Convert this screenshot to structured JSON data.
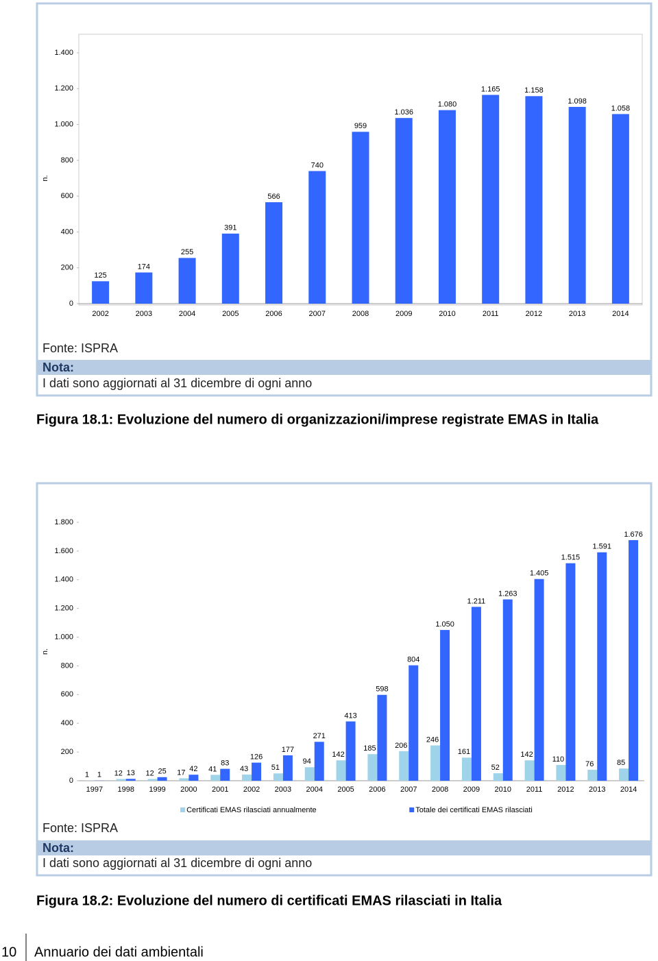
{
  "chart_data": [
    {
      "type": "bar",
      "y_label": "n.",
      "categories": [
        "2002",
        "2003",
        "2004",
        "2005",
        "2006",
        "2007",
        "2008",
        "2009",
        "2010",
        "2011",
        "2012",
        "2013",
        "2014"
      ],
      "values": [
        125,
        174,
        255,
        391,
        566,
        740,
        959,
        1036,
        1080,
        1165,
        1158,
        1098,
        1058
      ],
      "value_labels": [
        "125",
        "174",
        "255",
        "391",
        "566",
        "740",
        "959",
        "1.036",
        "1.080",
        "1.165",
        "1.158",
        "1.098",
        "1.058"
      ],
      "color": "#3366ff",
      "ylim": [
        0,
        1400
      ],
      "yticks": [
        0,
        200,
        400,
        600,
        800,
        {
          "value": 1000,
          "label": "1.000"
        },
        {
          "value": 1200,
          "label": "1.200"
        },
        {
          "value": 1400,
          "label": "1.400"
        }
      ],
      "grid": false
    },
    {
      "type": "bar",
      "y_label": "n.",
      "categories": [
        "1997",
        "1998",
        "1999",
        "2000",
        "2001",
        "2002",
        "2003",
        "2004",
        "2005",
        "2006",
        "2007",
        "2008",
        "2009",
        "2010",
        "2011",
        "2012",
        "2013",
        "2014"
      ],
      "series": [
        {
          "name": "Certificati EMAS rilasciati annualmente",
          "color": "#9fd3ea",
          "values": [
            1,
            12,
            12,
            17,
            41,
            43,
            51,
            94,
            142,
            185,
            206,
            246,
            161,
            52,
            142,
            110,
            76,
            85
          ]
        },
        {
          "name": "Totale dei certificati EMAS rilasciati",
          "color": "#3366ff",
          "values": [
            1,
            13,
            25,
            42,
            83,
            126,
            177,
            271,
            413,
            598,
            804,
            1050,
            1211,
            1263,
            1405,
            1515,
            1591,
            1676
          ],
          "value_labels": [
            "1",
            "13",
            "25",
            "42",
            "83",
            "126",
            "177",
            "271",
            "413",
            "598",
            "804",
            "1.050",
            "1.211",
            "1.263",
            "1.405",
            "1.515",
            "1.591",
            "1.676"
          ]
        }
      ],
      "ylim": [
        0,
        1800
      ],
      "yticks": [
        0,
        200,
        400,
        600,
        800,
        {
          "value": 1000,
          "label": "1.000"
        },
        {
          "value": 1200,
          "label": "1.200"
        },
        {
          "value": 1400,
          "label": "1.400"
        },
        {
          "value": 1600,
          "label": "1.600"
        },
        {
          "value": 1800,
          "label": "1.800"
        }
      ],
      "grid": false,
      "legend": "bottom"
    }
  ],
  "figures": [
    {
      "source": "Fonte: ISPRA",
      "note_label": "Nota:",
      "note": "I dati sono aggiornati al 31 dicembre di ogni anno",
      "caption": "Figura 18.1: Evoluzione del numero di organizzazioni/imprese registrate EMAS in Italia"
    },
    {
      "source": "Fonte: ISPRA",
      "note_label": "Nota:",
      "note": "I dati sono aggiornati al 31 dicembre di ogni anno",
      "caption": "Figura 18.2: Evoluzione del numero di certificati EMAS rilasciati in Italia"
    }
  ],
  "footer": {
    "page_number": "10",
    "text": "Annuario dei dati ambientali"
  }
}
